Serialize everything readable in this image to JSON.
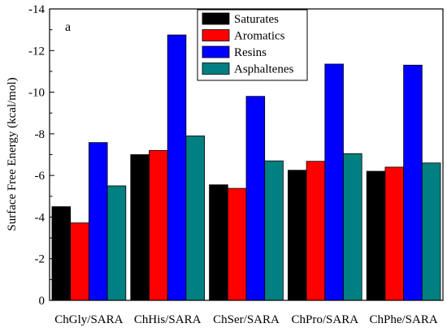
{
  "chart_data": {
    "type": "bar",
    "panel_label": "a",
    "ylabel": "Surface Free Energy (kcal/mol)",
    "xlabel": "",
    "y_axis_inverted": true,
    "ylim": [
      0,
      -14
    ],
    "yticks": [
      0,
      -2,
      -4,
      -6,
      -8,
      -10,
      -12,
      -14
    ],
    "ytick_labels": [
      "0",
      "-2",
      "-4",
      "-6",
      "-8",
      "-10",
      "-12",
      "-14"
    ],
    "categories": [
      "ChGly/SARA",
      "ChHis/SARA",
      "ChSer/SARA",
      "ChPro/SARA",
      "ChPhe/SARA"
    ],
    "series": [
      {
        "name": "Saturates",
        "color": "#000000",
        "values": [
          -4.5,
          -7.0,
          -5.55,
          -6.25,
          -6.2
        ]
      },
      {
        "name": "Aromatics",
        "color": "#ff0000",
        "values": [
          -3.72,
          -7.2,
          -5.38,
          -6.68,
          -6.4
        ]
      },
      {
        "name": "Resins",
        "color": "#0000ff",
        "values": [
          -7.58,
          -12.75,
          -9.8,
          -11.35,
          -11.3
        ]
      },
      {
        "name": "Asphaltenes",
        "color": "#008080",
        "values": [
          -5.5,
          -7.9,
          -6.7,
          -7.05,
          -6.6
        ]
      }
    ],
    "legend_position": "top-center",
    "grid": false
  }
}
